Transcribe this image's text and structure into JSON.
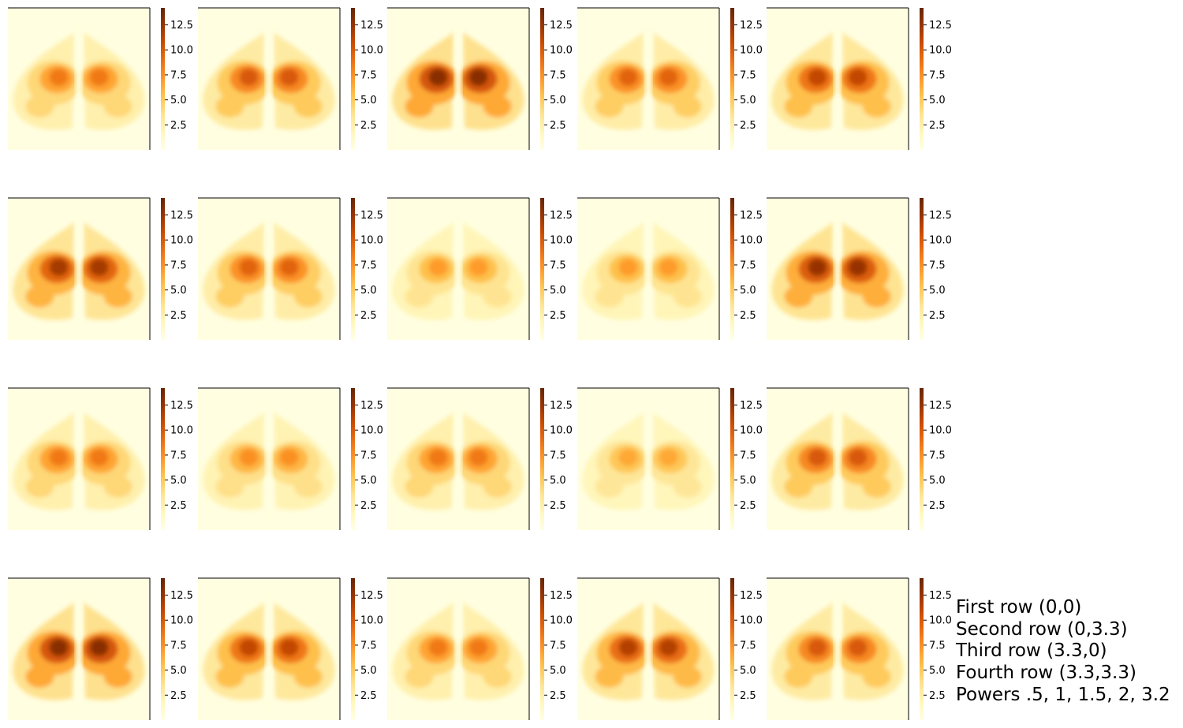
{
  "chart_data": {
    "type": "heatmap",
    "colormap": "YlOrBr",
    "layout": {
      "rows": 4,
      "columns": 5
    },
    "colorbar": {
      "min": 0,
      "max": 14.2,
      "ticks": [
        2.5,
        5.0,
        7.5,
        10.0,
        12.5
      ],
      "tick_labels": [
        "2.5",
        "5.0",
        "7.5",
        "10.0",
        "12.5"
      ]
    },
    "panel_peak_intensity": [
      [
        8.5,
        10.0,
        13.0,
        9.5,
        11.0
      ],
      [
        12.0,
        9.5,
        7.0,
        7.0,
        12.5
      ],
      [
        8.5,
        7.5,
        8.5,
        6.5,
        10.0
      ],
      [
        13.0,
        11.0,
        8.5,
        11.5,
        10.0
      ]
    ],
    "annotation": [
      "First row (0,0)",
      "Second row (0,3.3)",
      "Third row (3.3,0)",
      "Fourth row (3.3,3.3)",
      "Powers .5, 1, 1.5, 2, 3.2"
    ],
    "title": "",
    "xlabel": "",
    "ylabel": ""
  }
}
